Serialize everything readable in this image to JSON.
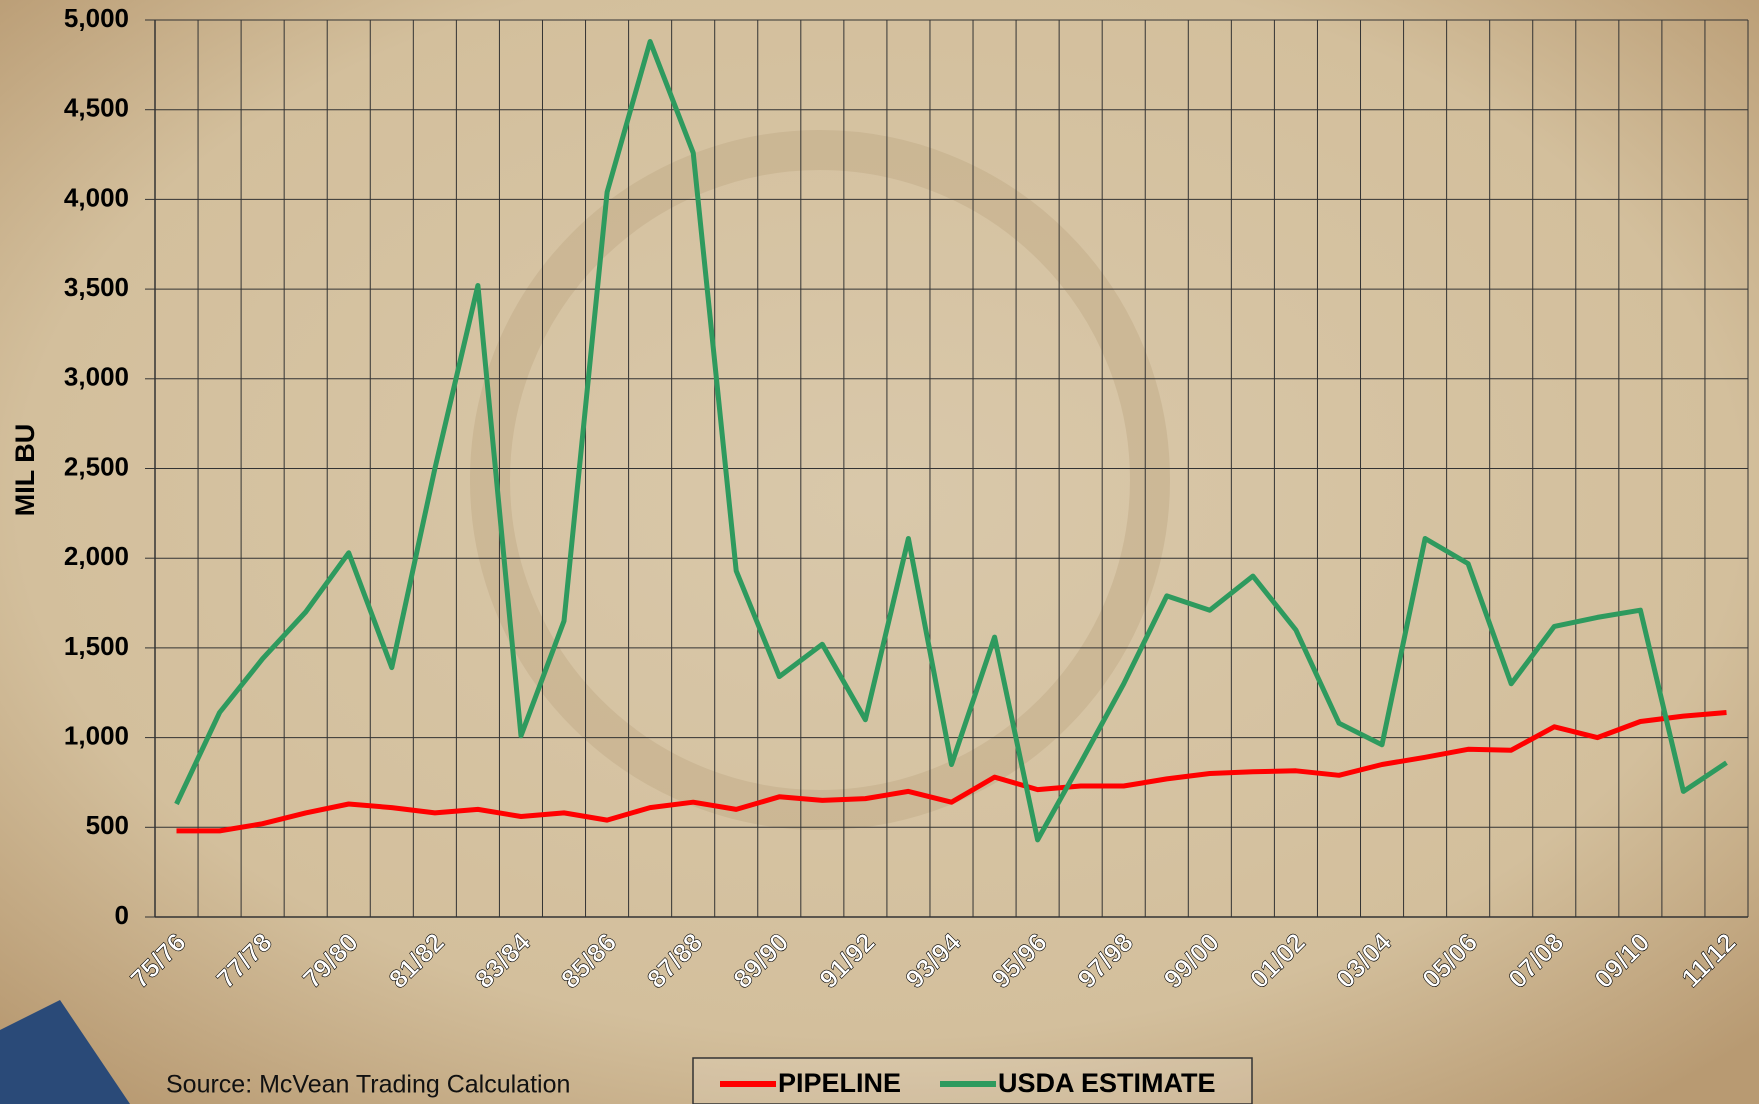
{
  "chart_data": {
    "type": "line",
    "y_axis_label": "MIL BU",
    "source": "Source: McVean Trading Calculation",
    "categories": [
      "75/76",
      null,
      "77/78",
      null,
      "79/80",
      null,
      "81/82",
      null,
      "83/84",
      null,
      "85/86",
      null,
      "87/88",
      null,
      "89/90",
      null,
      "91/92",
      null,
      "93/94",
      null,
      "95/96",
      null,
      "97/98",
      null,
      "99/00",
      null,
      "01/02",
      null,
      "03/04",
      null,
      "05/06",
      null,
      "07/08",
      null,
      "09/10",
      null,
      "11/12"
    ],
    "series": [
      {
        "name": "PIPELINE",
        "color": "#ff0000",
        "values": [
          480,
          480,
          520,
          580,
          630,
          610,
          580,
          600,
          560,
          580,
          540,
          610,
          640,
          600,
          670,
          650,
          660,
          700,
          640,
          780,
          710,
          730,
          730,
          770,
          800,
          810,
          815,
          790,
          850,
          890,
          935,
          930,
          1060,
          1000,
          1090,
          1120,
          1140
        ]
      },
      {
        "name": "USDA ESTIMATE",
        "color": "#2e9a5e",
        "values": [
          630,
          1140,
          1440,
          1700,
          2030,
          1390,
          2500,
          3520,
          1010,
          1650,
          4040,
          4880,
          4260,
          1930,
          1340,
          1520,
          1100,
          2110,
          850,
          1560,
          430,
          860,
          1300,
          1790,
          1710,
          1900,
          1600,
          1080,
          960,
          2110,
          1970,
          1300,
          1620,
          1670,
          1710,
          700,
          860
        ]
      }
    ],
    "ylim": [
      0,
      5000
    ],
    "yticks": [
      0,
      500,
      {
        "value": 1000,
        "label": "1,000"
      },
      {
        "value": 1500,
        "label": "1,500"
      },
      {
        "value": 2000,
        "label": "2,000"
      },
      {
        "value": 2500,
        "label": "2,500"
      },
      {
        "value": 3000,
        "label": "3,000"
      },
      {
        "value": 3500,
        "label": "3,500"
      },
      {
        "value": 4000,
        "label": "4,000"
      },
      {
        "value": 4500,
        "label": "4,500"
      },
      {
        "value": 5000,
        "label": "5,000"
      }
    ],
    "grid": true
  }
}
